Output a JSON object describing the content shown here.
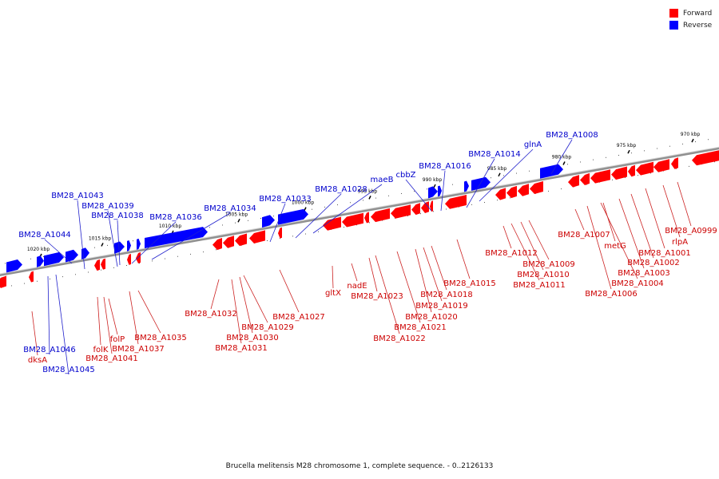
{
  "legend": [
    {
      "label": "Forward",
      "color": "#ff0000"
    },
    {
      "label": "Reverse",
      "color": "#0000ff"
    }
  ],
  "caption": "Brucella melitensis M28 chromosome 1, complete sequence. - 0..2126133",
  "colors": {
    "forward": "#ff0000",
    "reverse": "#0000ff",
    "backbone": "#909090",
    "label_forward": "#cc0000",
    "label_reverse": "#0000cc",
    "leader": "#000000"
  },
  "scale_ticks": [
    "1020 kbp",
    "1015 kbp",
    "1010 kbp",
    "1005 kbp",
    "1000 kbp",
    "995 kbp",
    "990 kbp",
    "985 kbp",
    "980 kbp",
    "975 kbp",
    "970 kbp"
  ],
  "reverse_genes": [
    "BM28_A1046",
    "BM28_A1045",
    "BM28_A1044",
    "BM28_A1043",
    "BM28_A1039",
    "BM28_A1038",
    "BM28_A1036",
    "BM28_A1034",
    "BM28_A1033",
    "BM28_A1028",
    "maeB",
    "cbbZ",
    "BM28_A1016",
    "BM28_A1014",
    "glnA",
    "BM28_A1008"
  ],
  "forward_genes": [
    "dksA",
    "folK",
    "BM28_A1041",
    "folP",
    "BM28_A1037",
    "BM28_A1035",
    "BM28_A1032",
    "BM28_A1031",
    "BM28_A1030",
    "BM28_A1029",
    "BM28_A1027",
    "gltX",
    "nadE",
    "BM28_A1023",
    "BM28_A1022",
    "BM28_A1021",
    "BM28_A1020",
    "BM28_A1019",
    "BM28_A1018",
    "BM28_A1015",
    "BM28_A1012",
    "BM28_A1011",
    "BM28_A1010",
    "BM28_A1009",
    "BM28_A1007",
    "BM28_A1006",
    "BM28_A1004",
    "metG",
    "BM28_A1003",
    "BM28_A1002",
    "BM28_A1001",
    "rlpA",
    "BM28_A0999"
  ]
}
